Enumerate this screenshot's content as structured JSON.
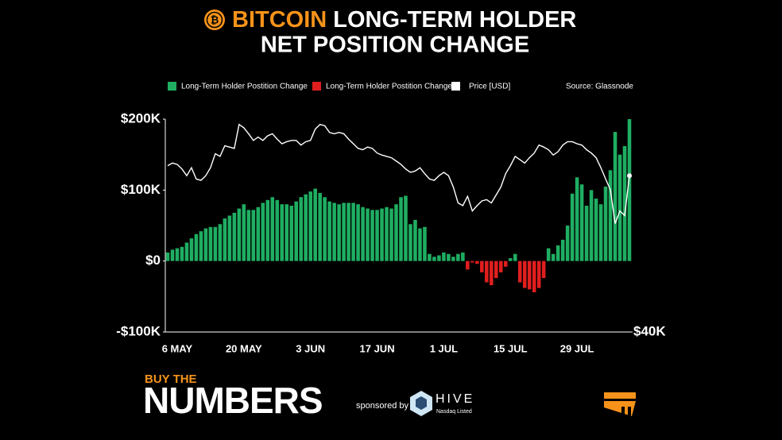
{
  "chart_data": {
    "type": "bar",
    "title": {
      "highlight": "BITCOIN",
      "line1": "LONG-TERM HOLDER",
      "line2": "NET POSITION CHANGE"
    },
    "source": "Source: Glassnode",
    "categories": [
      null,
      null,
      "6 MAY",
      null,
      null,
      null,
      null,
      null,
      null,
      null,
      null,
      null,
      null,
      null,
      null,
      null,
      "20 MAY",
      null,
      null,
      null,
      null,
      null,
      null,
      null,
      null,
      null,
      null,
      null,
      null,
      null,
      "3 JUN",
      null,
      null,
      null,
      null,
      null,
      null,
      null,
      null,
      null,
      null,
      null,
      null,
      null,
      "17 JUN",
      null,
      null,
      null,
      null,
      null,
      null,
      null,
      null,
      null,
      null,
      null,
      null,
      null,
      "1 JUL",
      null,
      null,
      null,
      null,
      null,
      null,
      null,
      null,
      null,
      null,
      null,
      null,
      null,
      "15 JUL",
      null,
      null,
      null,
      null,
      null,
      null,
      null,
      null,
      null,
      null,
      null,
      null,
      null,
      "29 JUL",
      null,
      null,
      null,
      null,
      null,
      null,
      null,
      null,
      null,
      null,
      null
    ],
    "series": [
      {
        "name": "Long-Term Holder Postition Change",
        "color": "#1fae62",
        "negative_name": "Long-Term Holder Postition Change",
        "negative_color": "#e01e1e",
        "values": [
          12000,
          16000,
          18000,
          20000,
          26000,
          32000,
          38000,
          42000,
          46000,
          48000,
          48000,
          52000,
          60000,
          64000,
          68000,
          74000,
          80000,
          72000,
          72000,
          76000,
          82000,
          86000,
          90000,
          86000,
          80000,
          80000,
          78000,
          84000,
          90000,
          94000,
          98000,
          102000,
          96000,
          90000,
          84000,
          82000,
          80000,
          82000,
          82000,
          82000,
          80000,
          76000,
          74000,
          72000,
          72000,
          74000,
          76000,
          74000,
          80000,
          90000,
          92000,
          52000,
          58000,
          46000,
          48000,
          10000,
          6000,
          8000,
          12000,
          10000,
          6000,
          10000,
          12000,
          -12000,
          -2000,
          -4000,
          -16000,
          -30000,
          -34000,
          -24000,
          -16000,
          -8000,
          4000,
          10000,
          -30000,
          -38000,
          -40000,
          -44000,
          -38000,
          -24000,
          18000,
          10000,
          22000,
          30000,
          50000,
          95000,
          118000,
          108000,
          78000,
          100000,
          88000,
          80000,
          105000,
          128000,
          182000,
          150000,
          162000,
          200000
        ]
      },
      {
        "name": "Price [USD]",
        "color": "#ffffff",
        "type": "line",
        "axis": "y2",
        "values": [
          65000,
          65400,
          65200,
          64500,
          63500,
          64700,
          63000,
          62800,
          63500,
          64700,
          66800,
          66400,
          68000,
          67800,
          67600,
          71200,
          70700,
          69800,
          68800,
          69300,
          68800,
          69500,
          69800,
          69000,
          68300,
          68600,
          68800,
          68800,
          68100,
          68600,
          68800,
          70500,
          71200,
          71000,
          70000,
          69800,
          70000,
          69800,
          69000,
          68300,
          67600,
          67400,
          67800,
          67600,
          66900,
          66600,
          66400,
          66200,
          65700,
          65200,
          64500,
          64000,
          64200,
          64700,
          63800,
          63000,
          62800,
          63500,
          64000,
          63500,
          61800,
          59400,
          59000,
          60400,
          58200,
          59000,
          59700,
          59900,
          59400,
          60600,
          61800,
          63800,
          65000,
          66400,
          65900,
          65400,
          66200,
          66900,
          68100,
          67800,
          67400,
          66600,
          67100,
          68100,
          68600,
          68600,
          68300,
          68100,
          67400,
          66900,
          66200,
          64700,
          63000,
          61400,
          56300,
          58200,
          57500,
          63500
        ]
      }
    ],
    "ylim": [
      -100000,
      200000
    ],
    "yticks": [
      {
        "value": 200000,
        "label": "$200K"
      },
      {
        "value": 100000,
        "label": "$100K"
      },
      {
        "value": 0,
        "label": "$0"
      },
      {
        "value": -100000,
        "label": "-$100K"
      }
    ],
    "y2lim": [
      40000,
      72000
    ],
    "y2ticks": [
      {
        "value": 40000,
        "label": "$40K"
      }
    ],
    "grid": false
  },
  "footer": {
    "brand_top": "BUY THE",
    "brand": "NUMBERS",
    "sponsor_text": "sponsored by",
    "sponsor": "HIVE",
    "sponsor_sub": "Nasdaq Listed"
  }
}
